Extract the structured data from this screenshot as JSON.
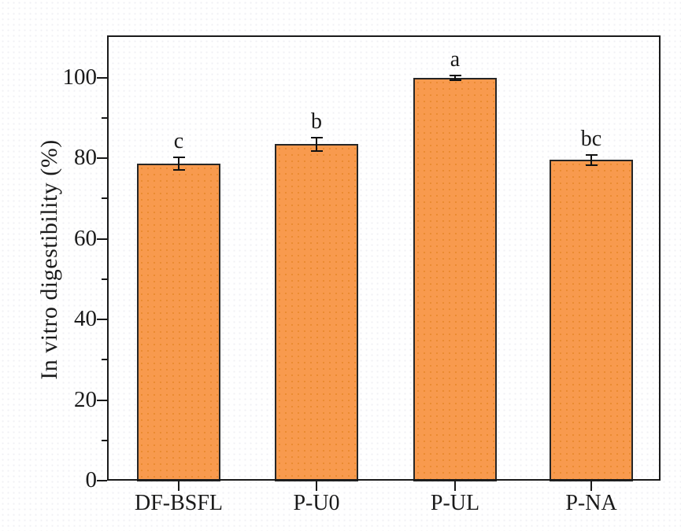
{
  "chart_data": {
    "type": "bar",
    "ylabel": "In vitro digestibility (%)",
    "categories": [
      "DF-BSFL",
      "P-U0",
      "P-UL",
      "P-NA"
    ],
    "values": [
      78.7,
      83.5,
      99.9,
      79.6
    ],
    "error_bars": [
      1.5,
      1.7,
      0.6,
      1.3
    ],
    "significance_letters": [
      "c",
      "b",
      "a",
      "bc"
    ],
    "ylim": [
      0,
      110.5
    ],
    "y_major_ticks": [
      0,
      20,
      40,
      60,
      80,
      100
    ],
    "y_minor_ticks": [
      10,
      30,
      50,
      70,
      90
    ],
    "grid": false,
    "legend_shown": false,
    "colors": {
      "bar_fill": "#F89A4E",
      "bar_dots": "#E2801F",
      "bar_edge": "#262626",
      "axis": "#1A1A1A",
      "text": "#1A1A1A",
      "background": "#FFFFFF"
    }
  }
}
